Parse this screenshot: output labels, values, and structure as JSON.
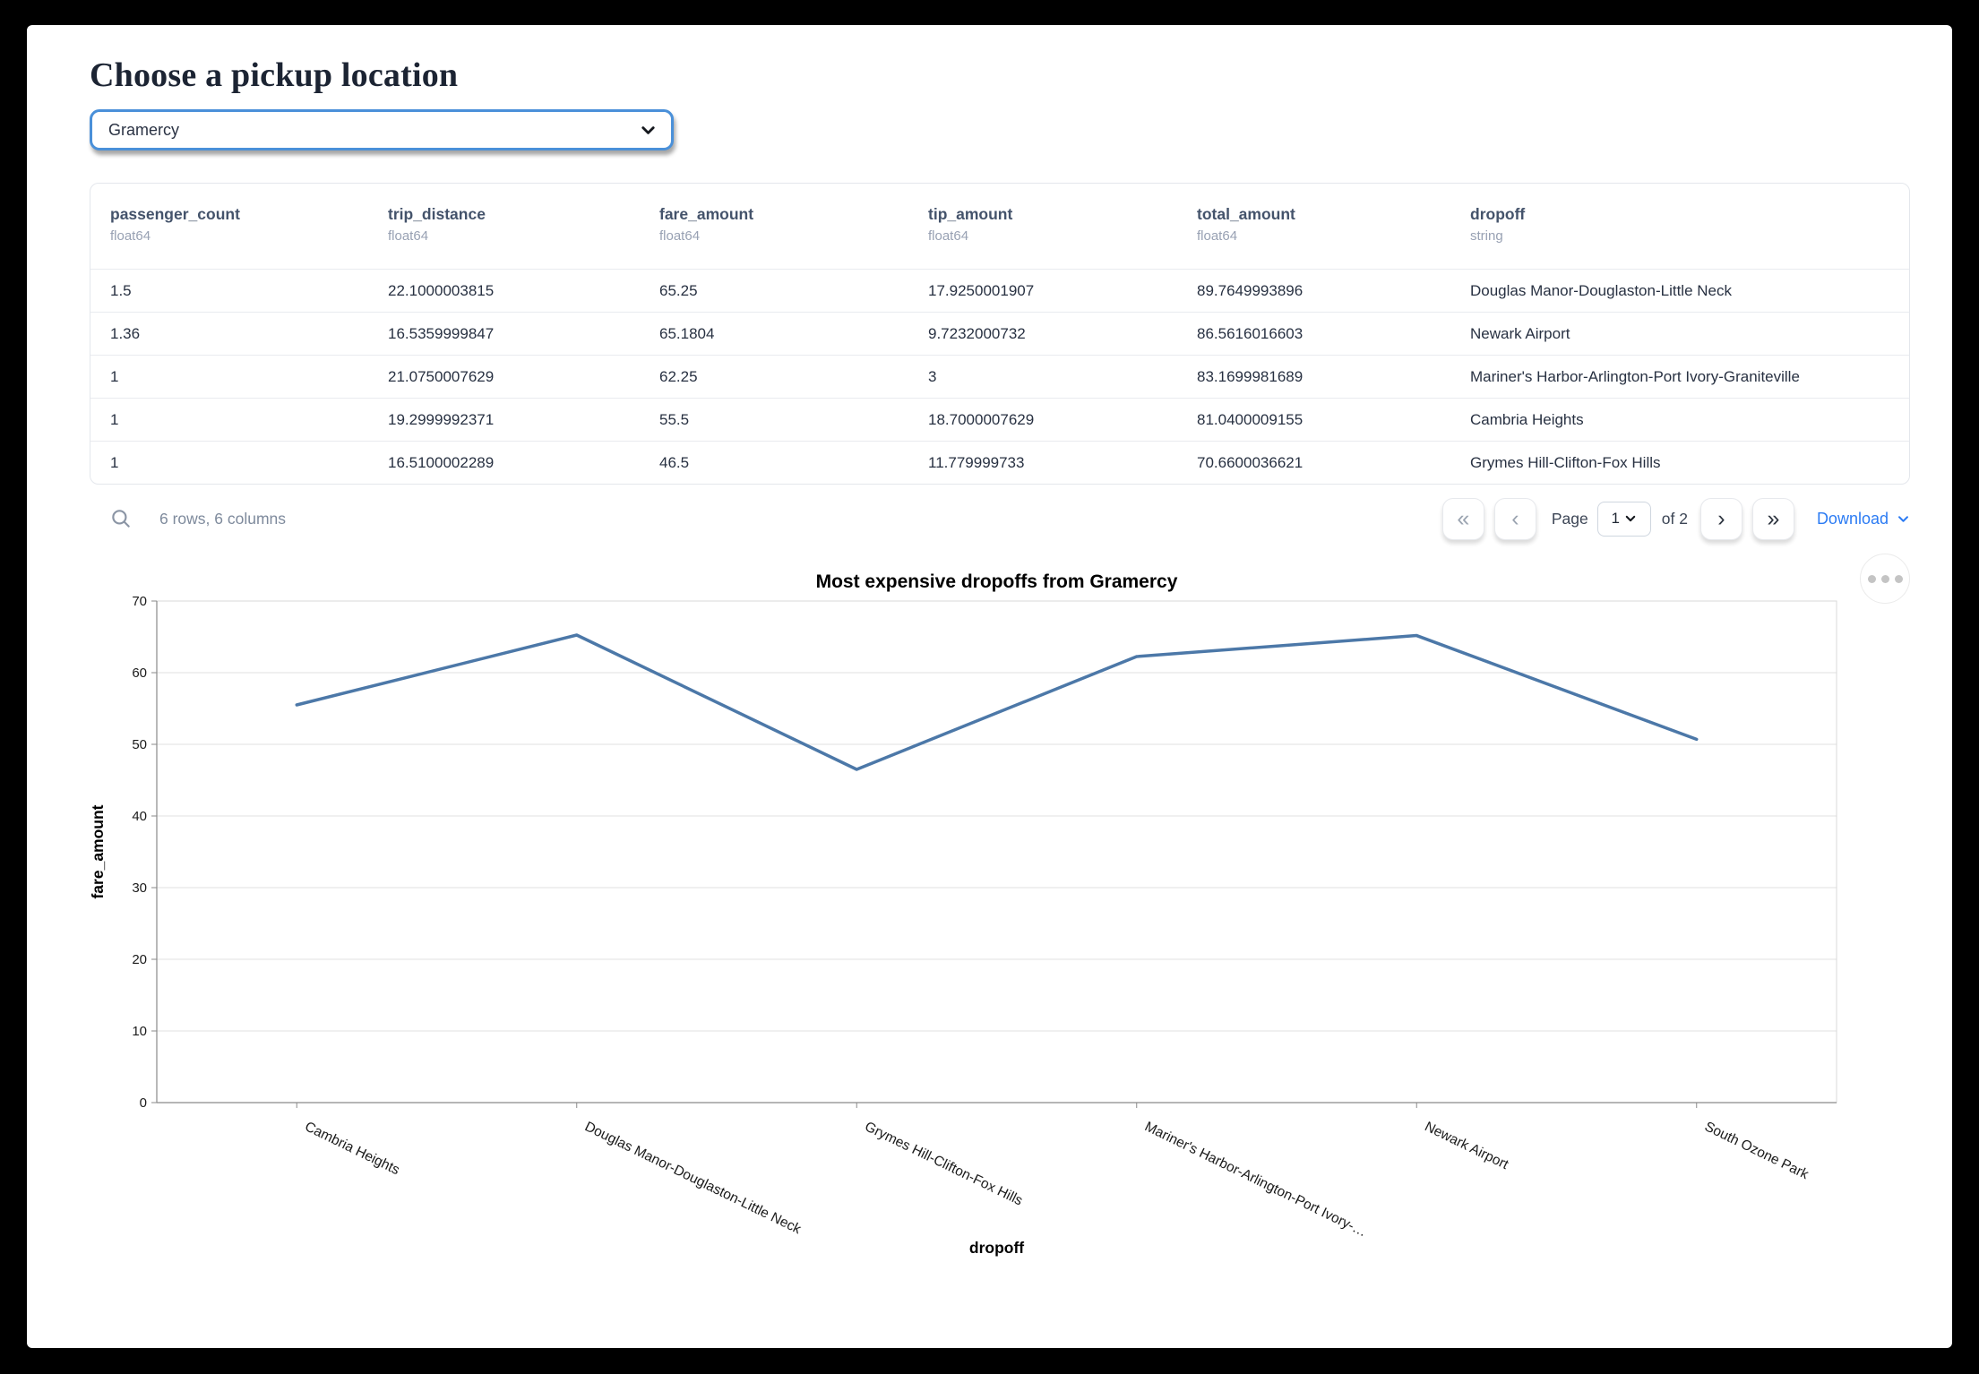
{
  "page": {
    "title": "Choose a pickup location"
  },
  "pickup_select": {
    "value": "Gramercy"
  },
  "table": {
    "columns": [
      {
        "name": "passenger_count",
        "dtype": "float64"
      },
      {
        "name": "trip_distance",
        "dtype": "float64"
      },
      {
        "name": "fare_amount",
        "dtype": "float64"
      },
      {
        "name": "tip_amount",
        "dtype": "float64"
      },
      {
        "name": "total_amount",
        "dtype": "float64"
      },
      {
        "name": "dropoff",
        "dtype": "string"
      }
    ],
    "rows": [
      [
        "1.5",
        "22.1000003815",
        "65.25",
        "17.9250001907",
        "89.7649993896",
        "Douglas Manor-Douglaston-Little Neck"
      ],
      [
        "1.36",
        "16.5359999847",
        "65.1804",
        "9.7232000732",
        "86.5616016603",
        "Newark Airport"
      ],
      [
        "1",
        "21.0750007629",
        "62.25",
        "3",
        "83.1699981689",
        "Mariner's Harbor-Arlington-Port Ivory-Graniteville"
      ],
      [
        "1",
        "19.2999992371",
        "55.5",
        "18.7000007629",
        "81.0400009155",
        "Cambria Heights"
      ],
      [
        "1",
        "16.5100002289",
        "46.5",
        "11.779999733",
        "70.6600036621",
        "Grymes Hill-Clifton-Fox Hills"
      ]
    ],
    "summary": "6 rows, 6 columns"
  },
  "pagination": {
    "first_glyph": "«",
    "prev_glyph": "‹",
    "next_glyph": "›",
    "last_glyph": "»",
    "page_label": "Page",
    "page_value": "1",
    "of_label": "of 2",
    "download_label": "Download"
  },
  "chart_data": {
    "type": "line",
    "title": "Most expensive dropoffs from Gramercy",
    "xlabel": "dropoff",
    "ylabel": "fare_amount",
    "ylim": [
      0,
      70
    ],
    "ytick_step": 10,
    "grid": true,
    "legend_position": "none",
    "categories": [
      "Cambria Heights",
      "Douglas Manor-Douglaston-Little Neck",
      "Grymes Hill-Clifton-Fox Hills",
      "Mariner's Harbor-Arlington-Port Ivory-Graniteville",
      "Newark Airport",
      "South Ozone Park"
    ],
    "categories_display": [
      "Cambria Heights",
      "Douglas Manor-Douglaston-Little Neck",
      "Grymes Hill-Clifton-Fox Hills",
      "Mariner's Harbor-Arlington-Port Ivory-…",
      "Newark Airport",
      "South Ozone Park"
    ],
    "series": [
      {
        "name": "fare_amount",
        "values": [
          55.5,
          65.25,
          46.5,
          62.25,
          65.1804,
          50.7
        ]
      }
    ],
    "line_color": "#4c78a8"
  },
  "colors": {
    "select_border_blue": "#4a90d9",
    "link_blue": "#2b7bf3",
    "line_blue": "#4c78a8"
  }
}
